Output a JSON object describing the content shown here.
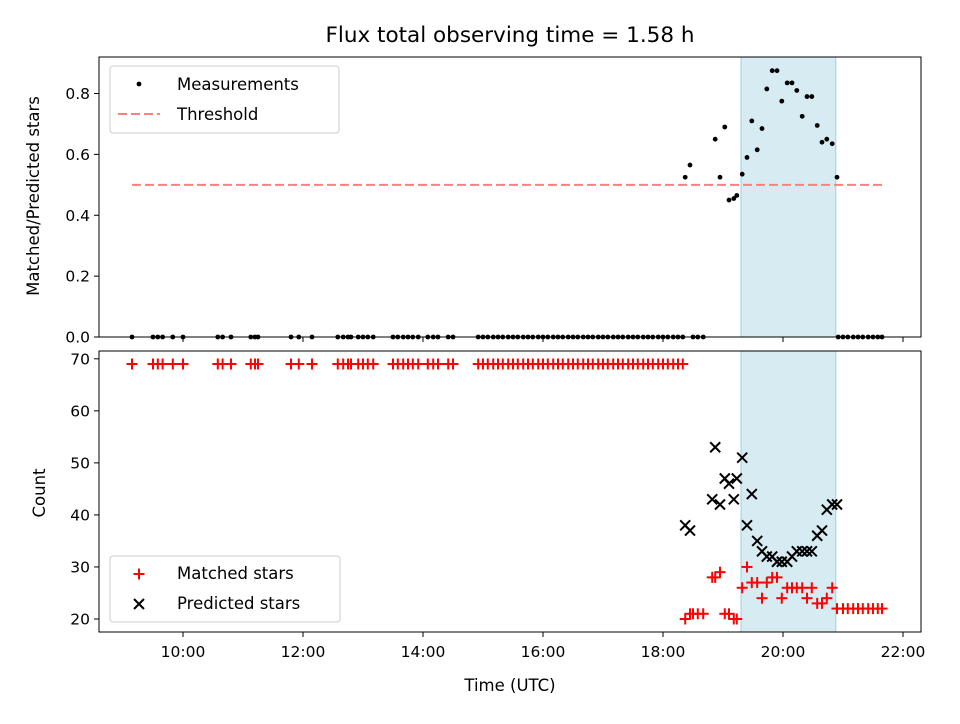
{
  "title": "Flux total observing time = 1.58 h",
  "chart_data": [
    {
      "type": "scatter",
      "ylabel": "Matched/Predicted stars",
      "xlabel": "",
      "xlim": [
        8.6,
        22.3
      ],
      "ylim": [
        0.0,
        0.92
      ],
      "yticks": [
        0.0,
        0.2,
        0.4,
        0.6,
        0.8
      ],
      "ytick_labels": [
        "0.0",
        "0.2",
        "0.4",
        "0.6",
        "0.8"
      ],
      "xticks": [
        10,
        12,
        14,
        16,
        18,
        20,
        22
      ],
      "shaded_interval": [
        19.3,
        20.88
      ],
      "grid": false,
      "legend_position": "upper left",
      "legend": [
        "Measurements",
        "Threshold"
      ],
      "threshold": {
        "name": "Threshold",
        "y": 0.5,
        "x_range": [
          9.15,
          21.65
        ],
        "style": "dashed",
        "color": "#ff7f7f"
      },
      "measurements": {
        "name": "Measurements",
        "color": "#000000",
        "zero_x": [
          9.15,
          9.5,
          9.58,
          9.66,
          9.83,
          10.0,
          10.58,
          10.66,
          10.8,
          11.13,
          11.2,
          11.25,
          11.8,
          11.93,
          12.15,
          12.58,
          12.67,
          12.75,
          12.8,
          12.92,
          13.0,
          13.08,
          13.17,
          13.5,
          13.58,
          13.67,
          13.75,
          13.83,
          13.92,
          14.08,
          14.17,
          14.25,
          14.42,
          14.5,
          14.92,
          15.0,
          15.08,
          15.17,
          15.25,
          15.33,
          15.42,
          15.5,
          15.58,
          15.67,
          15.75,
          15.83,
          15.92,
          16.0,
          16.08,
          16.17,
          16.25,
          16.33,
          16.42,
          16.5,
          16.58,
          16.67,
          16.75,
          16.83,
          16.92,
          17.0,
          17.08,
          17.17,
          17.25,
          17.33,
          17.42,
          17.5,
          17.58,
          17.67,
          17.75,
          17.83,
          17.92,
          18.0,
          18.08,
          18.17,
          18.25,
          18.33,
          18.5,
          18.58,
          18.67,
          20.92,
          21.0,
          21.08,
          21.17,
          21.25,
          21.33,
          21.42,
          21.5,
          21.58,
          21.65
        ],
        "x": [
          18.37,
          18.45,
          18.87,
          18.95,
          19.03,
          19.1,
          19.18,
          19.23,
          19.32,
          19.4,
          19.48,
          19.57,
          19.65,
          19.73,
          19.82,
          19.9,
          19.98,
          20.07,
          20.15,
          20.23,
          20.32,
          20.4,
          20.48,
          20.57,
          20.65,
          20.73,
          20.82,
          20.9
        ],
        "y": [
          0.525,
          0.565,
          0.65,
          0.525,
          0.69,
          0.45,
          0.455,
          0.465,
          0.535,
          0.59,
          0.71,
          0.615,
          0.685,
          0.815,
          0.875,
          0.875,
          0.775,
          0.835,
          0.835,
          0.81,
          0.725,
          0.79,
          0.79,
          0.695,
          0.64,
          0.65,
          0.635,
          0.525
        ]
      }
    },
    {
      "type": "scatter",
      "ylabel": "Count",
      "xlabel": "Time (UTC)",
      "xlim": [
        8.6,
        22.3
      ],
      "ylim": [
        17.5,
        71.5
      ],
      "yticks": [
        20,
        30,
        40,
        50,
        60,
        70
      ],
      "ytick_labels": [
        "20",
        "30",
        "40",
        "50",
        "60",
        "70"
      ],
      "xticks": [
        10,
        12,
        14,
        16,
        18,
        20,
        22
      ],
      "xtick_labels": [
        "10:00",
        "12:00",
        "14:00",
        "16:00",
        "18:00",
        "20:00",
        "22:00"
      ],
      "shaded_interval": [
        19.3,
        20.88
      ],
      "grid": false,
      "legend_position": "lower left",
      "legend": [
        "Matched stars",
        "Predicted stars"
      ],
      "series": [
        {
          "name": "Matched stars",
          "marker": "+",
          "color": "#ff0000",
          "x": [
            9.15,
            9.5,
            9.58,
            9.66,
            9.83,
            10.0,
            10.58,
            10.66,
            10.8,
            11.13,
            11.2,
            11.25,
            11.8,
            11.93,
            12.15,
            12.58,
            12.67,
            12.75,
            12.8,
            12.92,
            13.0,
            13.08,
            13.17,
            13.5,
            13.58,
            13.67,
            13.75,
            13.83,
            13.92,
            14.08,
            14.17,
            14.25,
            14.42,
            14.5,
            14.92,
            15.0,
            15.08,
            15.17,
            15.25,
            15.33,
            15.42,
            15.5,
            15.58,
            15.67,
            15.75,
            15.83,
            15.92,
            16.0,
            16.08,
            16.17,
            16.25,
            16.33,
            16.42,
            16.5,
            16.58,
            16.67,
            16.75,
            16.83,
            16.92,
            17.0,
            17.08,
            17.17,
            17.25,
            17.33,
            17.42,
            17.5,
            17.58,
            17.67,
            17.75,
            17.83,
            17.92,
            18.0,
            18.08,
            18.17,
            18.25,
            18.33,
            18.37,
            18.45,
            18.5,
            18.58,
            18.67,
            18.82,
            18.87,
            18.95,
            19.03,
            19.1,
            19.18,
            19.23,
            19.32,
            19.4,
            19.48,
            19.57,
            19.65,
            19.73,
            19.82,
            19.9,
            19.98,
            20.07,
            20.15,
            20.23,
            20.32,
            20.4,
            20.48,
            20.57,
            20.65,
            20.73,
            20.82,
            20.9,
            21.0,
            21.08,
            21.17,
            21.25,
            21.33,
            21.42,
            21.5,
            21.58,
            21.65
          ],
          "y": [
            69,
            69,
            69,
            69,
            69,
            69,
            69,
            69,
            69,
            69,
            69,
            69,
            69,
            69,
            69,
            69,
            69,
            69,
            69,
            69,
            69,
            69,
            69,
            69,
            69,
            69,
            69,
            69,
            69,
            69,
            69,
            69,
            69,
            69,
            69,
            69,
            69,
            69,
            69,
            69,
            69,
            69,
            69,
            69,
            69,
            69,
            69,
            69,
            69,
            69,
            69,
            69,
            69,
            69,
            69,
            69,
            69,
            69,
            69,
            69,
            69,
            69,
            69,
            69,
            69,
            69,
            69,
            69,
            69,
            69,
            69,
            69,
            69,
            69,
            69,
            69,
            20,
            21,
            21,
            21,
            21,
            28,
            28,
            29,
            21,
            21,
            20,
            20,
            26,
            30,
            27,
            27,
            24,
            27,
            28,
            28,
            24,
            26,
            26,
            26,
            26,
            24,
            26,
            23,
            23,
            24,
            26,
            22,
            22,
            22,
            22,
            22,
            22,
            22,
            22,
            22,
            22
          ]
        },
        {
          "name": "Predicted stars",
          "marker": "x",
          "color": "#000000",
          "x": [
            18.37,
            18.45,
            18.82,
            18.87,
            18.95,
            19.03,
            19.1,
            19.18,
            19.23,
            19.32,
            19.4,
            19.48,
            19.57,
            19.65,
            19.73,
            19.82,
            19.9,
            19.98,
            20.07,
            20.15,
            20.23,
            20.32,
            20.4,
            20.48,
            20.57,
            20.65,
            20.73,
            20.82,
            20.9
          ],
          "y": [
            38,
            37,
            43,
            53,
            42,
            47,
            46,
            43,
            47,
            51,
            38,
            44,
            35,
            33,
            32,
            32,
            31,
            31,
            31,
            32,
            33,
            33,
            33,
            33,
            36,
            37,
            41,
            42,
            42
          ]
        }
      ]
    }
  ]
}
